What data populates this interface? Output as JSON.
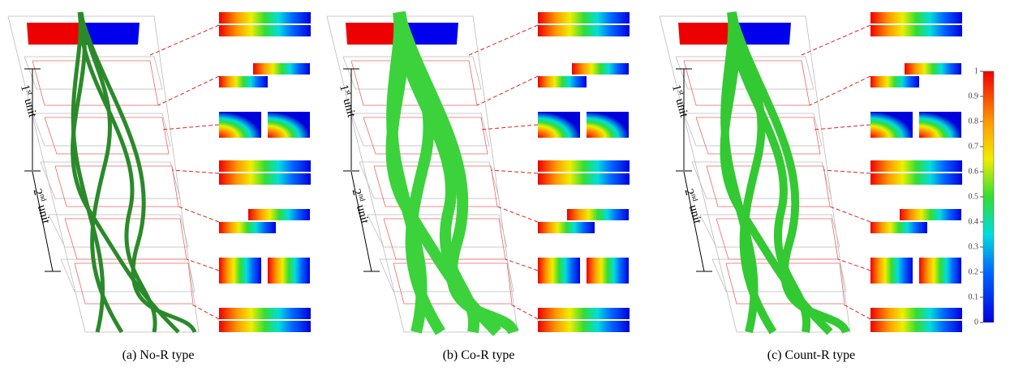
{
  "panels": [
    {
      "caption": "(a) No-R type",
      "units": [
        {
          "number": "1",
          "suffix": "st",
          "word": "unit"
        },
        {
          "number": "2",
          "suffix": "nd",
          "word": "unit"
        }
      ]
    },
    {
      "caption": "(b) Co-R type",
      "units": [
        {
          "number": "1",
          "suffix": "st",
          "word": "unit"
        },
        {
          "number": "2",
          "suffix": "nd",
          "word": "unit"
        }
      ]
    },
    {
      "caption": "(c) Count-R type",
      "units": [
        {
          "number": "1",
          "suffix": "st",
          "word": "unit"
        },
        {
          "number": "2",
          "suffix": "nd",
          "word": "unit"
        }
      ]
    }
  ],
  "colorbar": {
    "lim": [
      0,
      1
    ],
    "ticks": [
      0,
      0.1,
      0.2,
      0.3,
      0.4,
      0.5,
      0.6,
      0.7,
      0.8,
      0.9,
      1
    ]
  }
}
